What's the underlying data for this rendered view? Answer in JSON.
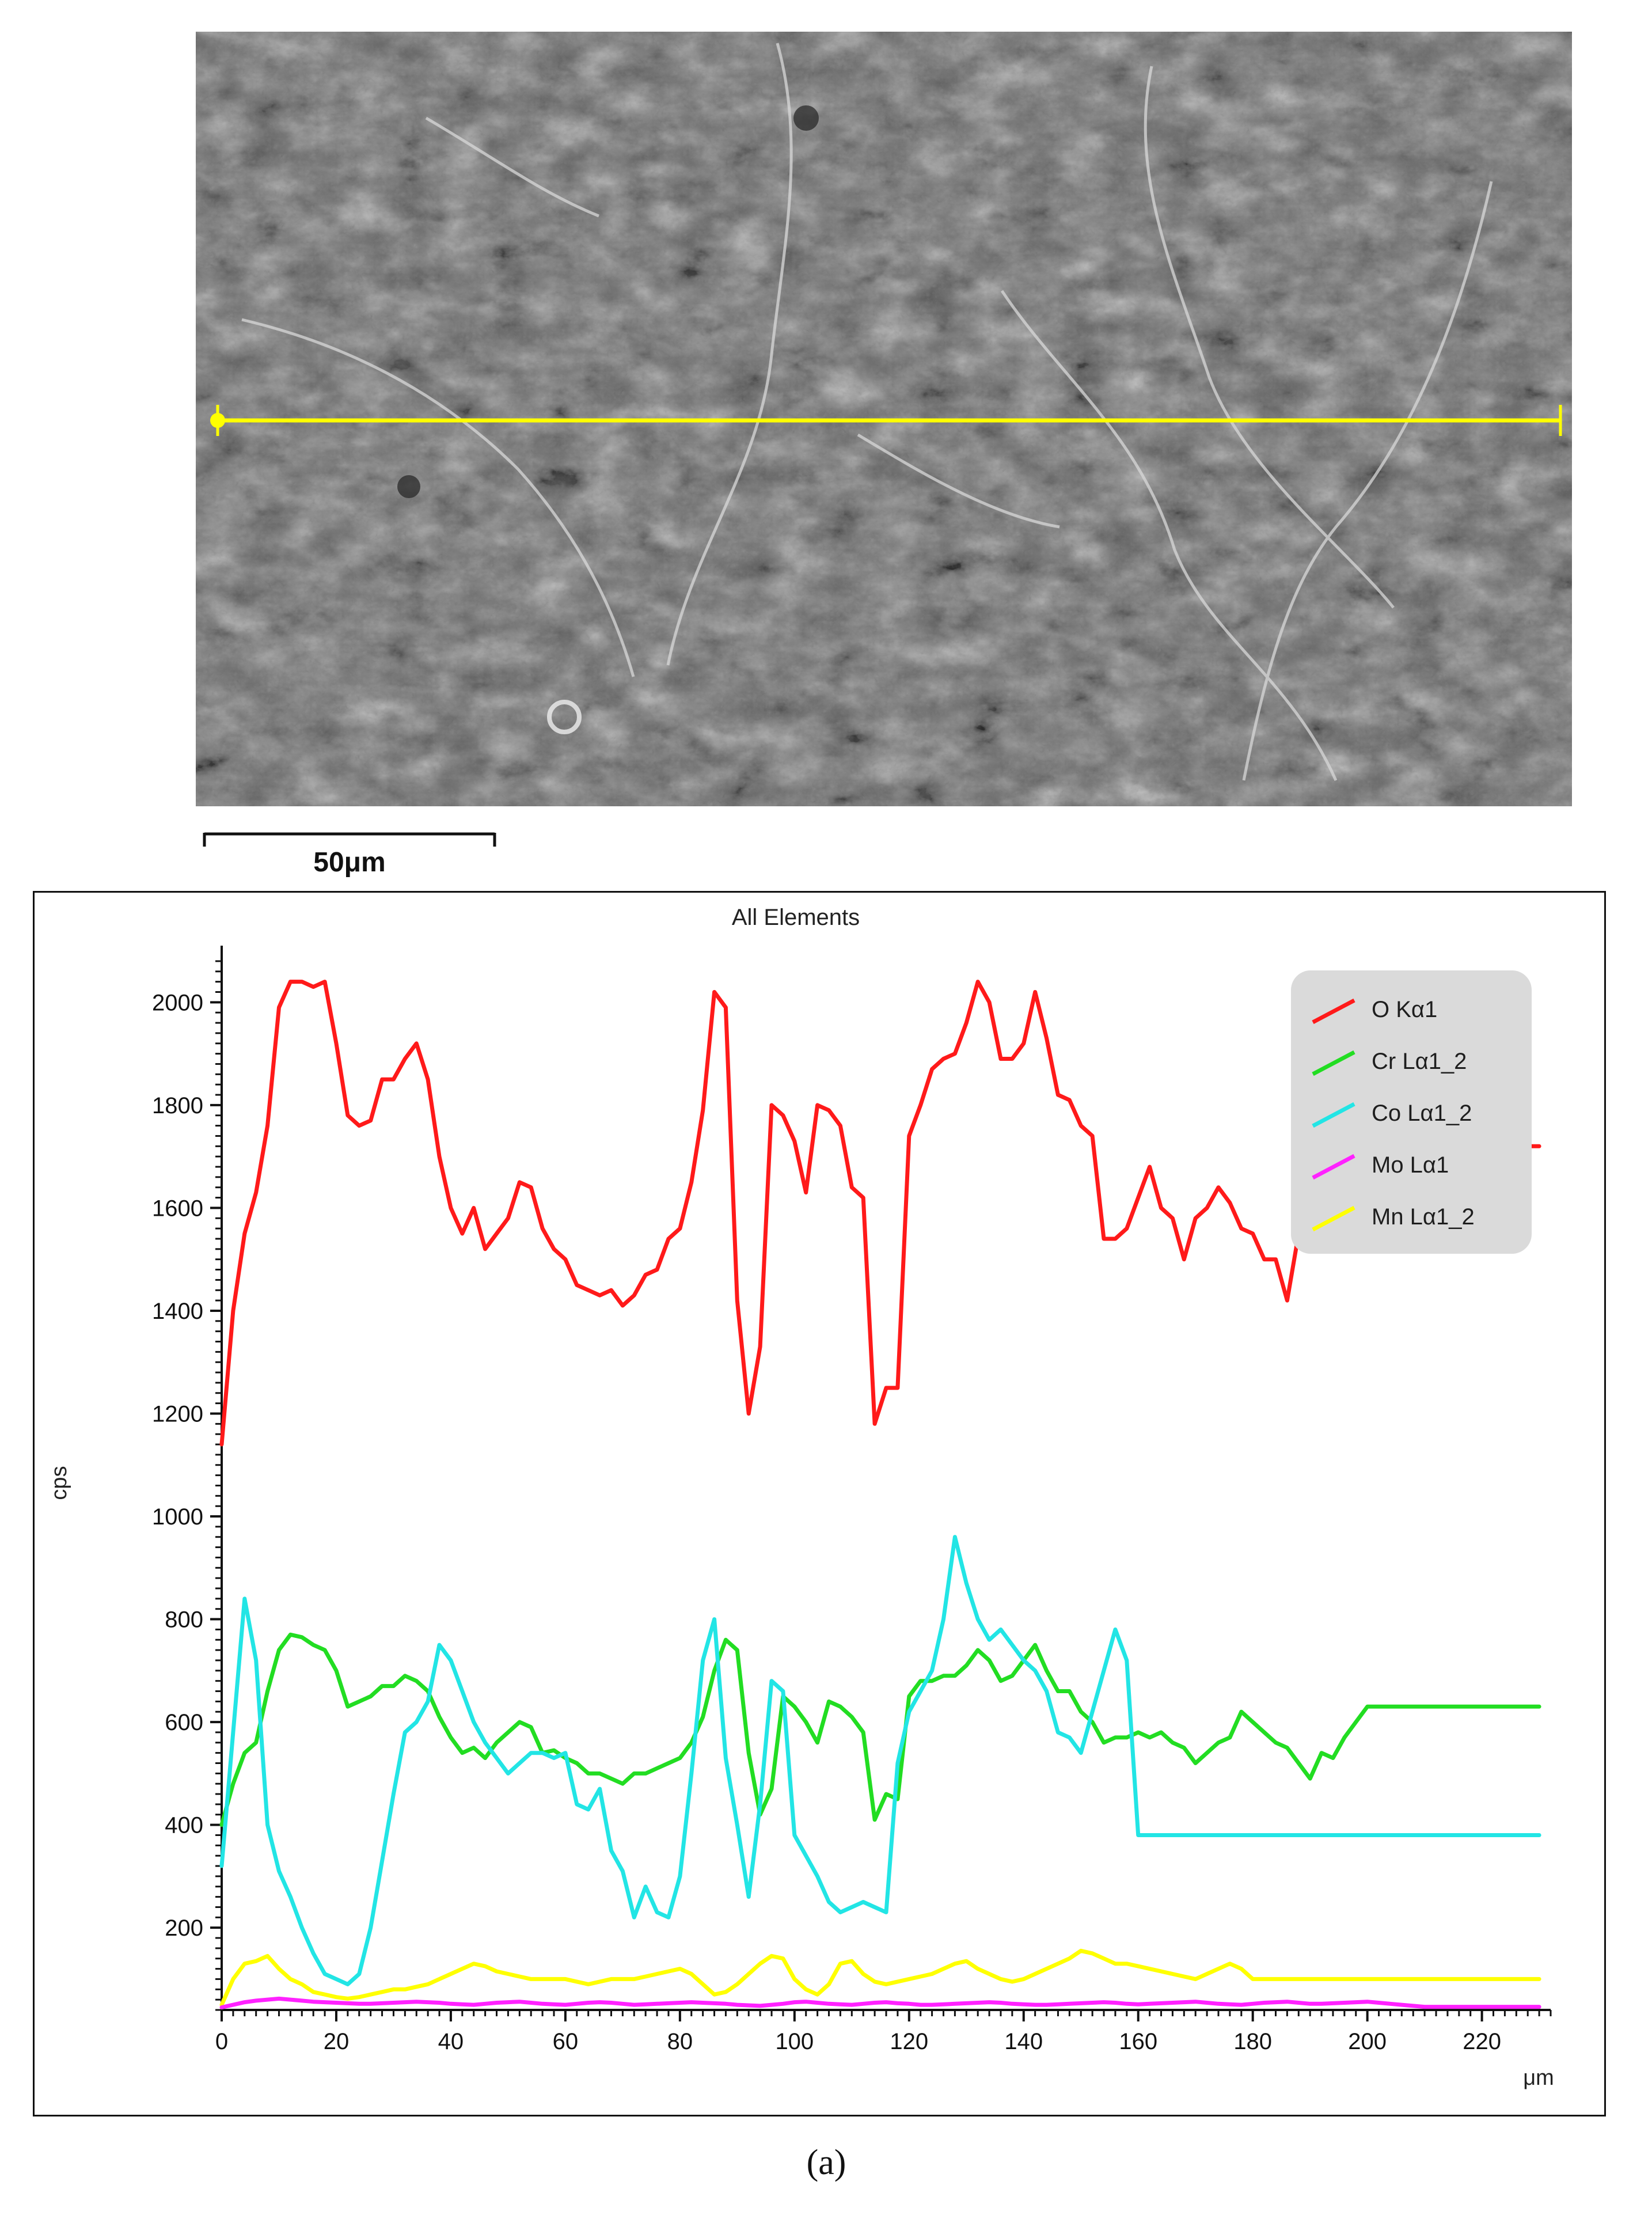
{
  "micrograph": {
    "scale_bar_label": "50μm"
  },
  "chart_data": {
    "type": "line",
    "title": "All Elements",
    "xlabel": "μm",
    "ylabel": "cps",
    "xlim": [
      0,
      232
    ],
    "ylim": [
      40,
      2090
    ],
    "y_ticks": [
      200,
      400,
      600,
      800,
      1000,
      1200,
      1400,
      1600,
      1800,
      2000
    ],
    "x_ticks": [
      0,
      20,
      40,
      60,
      80,
      100,
      120,
      140,
      160,
      180,
      200,
      220
    ],
    "grid": false,
    "legend_position": "top-right",
    "x": [
      0,
      2,
      4,
      6,
      8,
      10,
      12,
      14,
      16,
      18,
      20,
      22,
      24,
      26,
      28,
      30,
      32,
      34,
      36,
      38,
      40,
      42,
      44,
      46,
      48,
      50,
      52,
      54,
      56,
      58,
      60,
      62,
      64,
      66,
      68,
      70,
      72,
      74,
      76,
      78,
      80,
      82,
      84,
      86,
      88,
      90,
      92,
      94,
      96,
      98,
      100,
      102,
      104,
      106,
      108,
      110,
      112,
      114,
      116,
      118,
      120,
      122,
      124,
      126,
      128,
      130,
      132,
      134,
      136,
      138,
      140,
      142,
      144,
      146,
      148,
      150,
      152,
      154,
      156,
      158,
      160,
      162,
      164,
      166,
      168,
      170,
      172,
      174,
      176,
      178,
      180,
      182,
      184,
      186,
      188,
      190,
      192,
      194,
      196,
      198,
      200,
      202,
      204,
      206,
      208,
      210,
      212,
      214,
      216,
      218,
      220,
      222,
      224,
      226,
      228,
      230
    ],
    "series": [
      {
        "name": "O Kα1",
        "color": "#ff1a1a",
        "values": [
          1140,
          1400,
          1550,
          1630,
          1760,
          1990,
          2040,
          2040,
          2030,
          2040,
          1920,
          1780,
          1760,
          1770,
          1850,
          1850,
          1890,
          1920,
          1850,
          1700,
          1600,
          1550,
          1600,
          1520,
          1550,
          1580,
          1650,
          1640,
          1560,
          1520,
          1500,
          1450,
          1440,
          1430,
          1440,
          1410,
          1430,
          1470,
          1480,
          1540,
          1560,
          1650,
          1790,
          2020,
          1990,
          1420,
          1200,
          1330,
          1800,
          1780,
          1730,
          1630,
          1800,
          1790,
          1760,
          1640,
          1620,
          1180,
          1250,
          1250,
          1740,
          1800,
          1870,
          1890,
          1900,
          1960,
          2040,
          2000,
          1890,
          1890,
          1920,
          2020,
          1930,
          1820,
          1810,
          1760,
          1740,
          1540,
          1540,
          1560,
          1620,
          1680,
          1600,
          1580,
          1500,
          1580,
          1600,
          1640,
          1610,
          1560,
          1550,
          1500,
          1500,
          1420,
          1550,
          1660,
          1660,
          1720,
          1720,
          1720,
          1720,
          1720,
          1720,
          1720,
          1720,
          1720,
          1720,
          1720,
          1720,
          1720,
          1720,
          1720,
          1720,
          1720,
          1720,
          1720
        ],
        "values_note": ""
      },
      {
        "name": "Cr Lα1_2",
        "color": "#22dd22",
        "values": [
          400,
          480,
          540,
          560,
          660,
          740,
          770,
          765,
          750,
          740,
          700,
          630,
          640,
          650,
          670,
          670,
          690,
          680,
          660,
          610,
          570,
          540,
          550,
          530,
          560,
          580,
          600,
          590,
          540,
          545,
          530,
          520,
          500,
          500,
          490,
          480,
          500,
          500,
          510,
          520,
          530,
          560,
          610,
          700,
          760,
          740,
          540,
          420,
          470,
          650,
          630,
          600,
          560,
          640,
          630,
          610,
          580,
          410,
          460,
          450,
          650,
          680,
          680,
          690,
          690,
          710,
          740,
          720,
          680,
          690,
          720,
          750,
          700,
          660,
          660,
          620,
          600,
          560,
          570,
          570,
          580,
          570,
          580,
          560,
          550,
          520,
          540,
          560,
          570,
          620,
          600,
          580,
          560,
          550,
          520,
          490,
          540,
          530,
          570,
          600,
          630,
          630,
          630,
          630,
          630,
          630,
          630,
          630,
          630,
          630,
          630,
          630,
          630,
          630,
          630,
          630
        ]
      },
      {
        "name": "Co Lα1_2",
        "color": "#22e5e5",
        "values": [
          320,
          580,
          840,
          720,
          400,
          310,
          260,
          200,
          150,
          110,
          100,
          90,
          110,
          200,
          330,
          460,
          580,
          600,
          640,
          750,
          720,
          660,
          600,
          560,
          530,
          500,
          520,
          540,
          540,
          530,
          540,
          440,
          430,
          470,
          350,
          310,
          220,
          280,
          230,
          220,
          300,
          500,
          720,
          800,
          530,
          400,
          260,
          440,
          680,
          660,
          380,
          340,
          300,
          250,
          230,
          240,
          250,
          240,
          230,
          520,
          620,
          660,
          700,
          800,
          960,
          870,
          800,
          760,
          780,
          750,
          720,
          700,
          660,
          580,
          570,
          540,
          620,
          700,
          780,
          720,
          380,
          380,
          380,
          380,
          380,
          380,
          380,
          380,
          380,
          380,
          380,
          380,
          380,
          380,
          380,
          380,
          380,
          380,
          380,
          380,
          380,
          380,
          380,
          380,
          380,
          380,
          380,
          380,
          380,
          380,
          380,
          380,
          380,
          380,
          380,
          380
        ]
      },
      {
        "name": "Mo Lα1",
        "color": "#ff22ff",
        "values": [
          45,
          50,
          55,
          58,
          60,
          62,
          60,
          58,
          56,
          55,
          54,
          53,
          52,
          52,
          53,
          54,
          55,
          56,
          55,
          54,
          52,
          51,
          50,
          52,
          54,
          55,
          56,
          54,
          52,
          51,
          50,
          52,
          54,
          55,
          54,
          52,
          50,
          51,
          52,
          53,
          54,
          55,
          54,
          53,
          52,
          50,
          49,
          48,
          50,
          52,
          55,
          56,
          54,
          52,
          51,
          50,
          52,
          54,
          55,
          53,
          52,
          50,
          50,
          51,
          52,
          53,
          54,
          55,
          54,
          52,
          51,
          50,
          50,
          51,
          52,
          53,
          54,
          55,
          54,
          52,
          51,
          52,
          53,
          54,
          55,
          56,
          54,
          52,
          51,
          50,
          52,
          54,
          55,
          56,
          54,
          52,
          52,
          53,
          54,
          55,
          56,
          54,
          52,
          50,
          48,
          46,
          46,
          46,
          46,
          46,
          46,
          46,
          46,
          46,
          46,
          46
        ]
      },
      {
        "name": "Mn Lα1_2",
        "color": "#ffff00",
        "values": [
          50,
          100,
          130,
          135,
          145,
          120,
          100,
          90,
          75,
          70,
          65,
          62,
          65,
          70,
          75,
          80,
          80,
          85,
          90,
          100,
          110,
          120,
          130,
          125,
          115,
          110,
          105,
          100,
          100,
          100,
          100,
          95,
          90,
          95,
          100,
          100,
          100,
          105,
          110,
          115,
          120,
          110,
          90,
          70,
          75,
          90,
          110,
          130,
          145,
          140,
          100,
          80,
          70,
          90,
          130,
          135,
          110,
          95,
          90,
          95,
          100,
          105,
          110,
          120,
          130,
          135,
          120,
          110,
          100,
          95,
          100,
          110,
          120,
          130,
          140,
          155,
          150,
          140,
          130,
          130,
          125,
          120,
          115,
          110,
          105,
          100,
          110,
          120,
          130,
          120,
          100,
          100,
          100,
          100,
          100,
          100,
          100,
          100,
          100,
          100,
          100,
          100,
          100,
          100,
          100,
          100,
          100,
          100,
          100,
          100,
          100,
          100,
          100,
          100,
          100,
          100
        ]
      }
    ]
  },
  "panel_caption": "(a)"
}
